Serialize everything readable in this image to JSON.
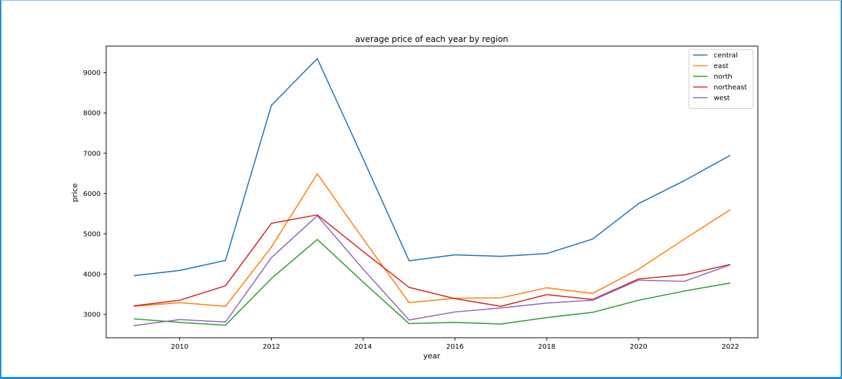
{
  "chart_data": {
    "type": "line",
    "title": "average price of each year by region",
    "xlabel": "year",
    "ylabel": "price",
    "xlim": [
      2008.4,
      2022.6
    ],
    "ylim": [
      2420,
      9660
    ],
    "x_ticks": [
      "2010",
      "2012",
      "2014",
      "2016",
      "2018",
      "2020",
      "2022"
    ],
    "x_tick_values": [
      2010,
      2012,
      2014,
      2016,
      2018,
      2020,
      2022
    ],
    "y_ticks": [
      "3000",
      "4000",
      "5000",
      "6000",
      "7000",
      "8000",
      "9000"
    ],
    "y_tick_values": [
      3000,
      4000,
      5000,
      6000,
      7000,
      8000,
      9000
    ],
    "grid": false,
    "legend_position": "top-right",
    "x": [
      2009,
      2010,
      2011,
      2012,
      2013,
      2014,
      2015,
      2016,
      2017,
      2018,
      2019,
      2020,
      2021,
      2022
    ],
    "series": [
      {
        "name": "central",
        "color": "#1f77b4",
        "values": [
          3960,
          4090,
          4340,
          8190,
          9350,
          6860,
          4330,
          4480,
          4440,
          4510,
          4870,
          5750,
          6320,
          6950
        ]
      },
      {
        "name": "east",
        "color": "#ff7f0e",
        "values": [
          3200,
          3290,
          3200,
          4670,
          6490,
          4870,
          3290,
          3400,
          3410,
          3660,
          3520,
          4120,
          4870,
          5600
        ]
      },
      {
        "name": "north",
        "color": "#2ca02c",
        "values": [
          2890,
          2800,
          2730,
          3890,
          4860,
          3800,
          2770,
          2800,
          2760,
          2920,
          3050,
          3350,
          3580,
          3780
        ]
      },
      {
        "name": "northeast",
        "color": "#d62728",
        "values": [
          3210,
          3350,
          3710,
          5260,
          5470,
          4560,
          3670,
          3390,
          3200,
          3490,
          3370,
          3880,
          3980,
          4240
        ]
      },
      {
        "name": "west",
        "color": "#9467bd",
        "values": [
          2720,
          2870,
          2810,
          4410,
          5450,
          4120,
          2860,
          3060,
          3160,
          3280,
          3350,
          3850,
          3820,
          4230
        ]
      }
    ]
  }
}
